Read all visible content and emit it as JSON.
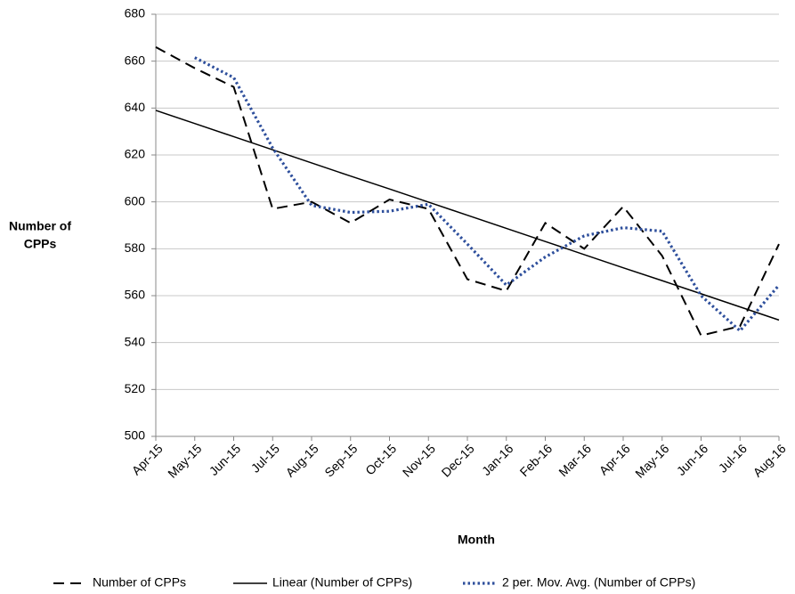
{
  "chart_data": {
    "type": "line",
    "ylabel": [
      "Number of",
      "CPPs"
    ],
    "xlabel": "Month",
    "categories": [
      "Apr-15",
      "May-15",
      "Jun-15",
      "Jul-15",
      "Aug-15",
      "Sep-15",
      "Oct-15",
      "Nov-15",
      "Dec-15",
      "Jan-16",
      "Feb-16",
      "Mar-16",
      "Apr-16",
      "May-16",
      "Jun-16",
      "Jul-16",
      "Aug-16"
    ],
    "series": [
      {
        "name": "Number of CPPs",
        "color": "#000000",
        "style": "dashed",
        "values": [
          666,
          657,
          649,
          597,
          600,
          591,
          601,
          597,
          567,
          562,
          591,
          580,
          598,
          577,
          543,
          547,
          582
        ]
      },
      {
        "name": "Linear (Number of CPPs)",
        "color": "#000000",
        "style": "solid",
        "values": [
          639,
          633.4,
          627.8,
          622.2,
          616.6,
          611,
          605.5,
          599.9,
          594.3,
          588.7,
          583.1,
          577.5,
          571.9,
          566.4,
          560.8,
          555.2,
          549.6
        ]
      },
      {
        "name": "2 per. Mov. Avg. (Number of CPPs)",
        "color": "#2e4f9c",
        "style": "dotted",
        "values": [
          null,
          661.5,
          653,
          623,
          598.5,
          595.5,
          596,
          599,
          582,
          564.5,
          576.5,
          585.5,
          589,
          587.5,
          560,
          545,
          564.5
        ]
      }
    ],
    "ylim": [
      500,
      680
    ],
    "yticks": [
      500,
      520,
      540,
      560,
      580,
      600,
      620,
      640,
      660,
      680
    ],
    "grid": true,
    "legend": "bottom"
  }
}
